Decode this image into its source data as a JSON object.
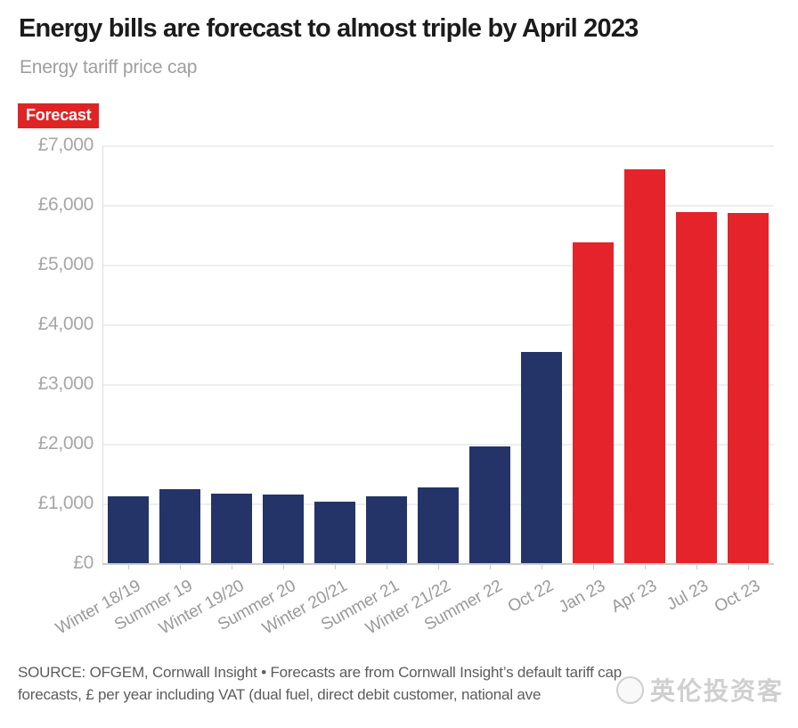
{
  "header": {
    "title": "Energy bills are forecast to almost triple by April 2023",
    "subtitle": "Energy tariff price cap"
  },
  "colors": {
    "historical_blue": "#253468",
    "forecast_red": "#e4232a",
    "badge_red": "#dd2526",
    "grid": "#efefef",
    "axis": "#cbcbcb"
  },
  "chart_data": {
    "type": "bar",
    "title": "Energy bills are forecast to almost triple by April 2023",
    "subtitle": "Energy tariff price cap",
    "categories": [
      "Winter 18/19",
      "Summer 19",
      "Winter 19/20",
      "Summer 20",
      "Winter 20/21",
      "Summer 21",
      "Winter 21/22",
      "Summer 22",
      "Oct 22",
      "Jan 23",
      "Apr 23",
      "Jul 23",
      "Oct 23"
    ],
    "values": [
      1137,
      1254,
      1179,
      1162,
      1042,
      1138,
      1277,
      1971,
      3549,
      5387,
      6616,
      5897,
      5887
    ],
    "is_forecast": [
      false,
      false,
      false,
      false,
      false,
      false,
      false,
      false,
      false,
      true,
      true,
      true,
      true
    ],
    "series": [
      {
        "name": "Price cap",
        "color": "#253468"
      },
      {
        "name": "Forecast",
        "color": "#e4232a"
      }
    ],
    "legend": {
      "label": "Forecast",
      "position": "top-left"
    },
    "xlabel": "",
    "ylabel": "",
    "ylim": [
      0,
      7000
    ],
    "yticks": [
      0,
      1000,
      2000,
      3000,
      4000,
      5000,
      6000,
      7000
    ],
    "ytick_labels": [
      "£0",
      "£1,000",
      "£2,000",
      "£3,000",
      "£4,000",
      "£5,000",
      "£6,000",
      "£7,000"
    ],
    "grid": "horizontal"
  },
  "source": {
    "lines": [
      "SOURCE: OFGEM, Cornwall Insight • Forecasts are from Cornwall Insight’s default tariff cap",
      "forecasts, £ per year including VAT (dual fuel, direct debit customer, national ave"
    ]
  },
  "watermark": {
    "icon": "circle-logo",
    "text": "英伦投资客"
  }
}
